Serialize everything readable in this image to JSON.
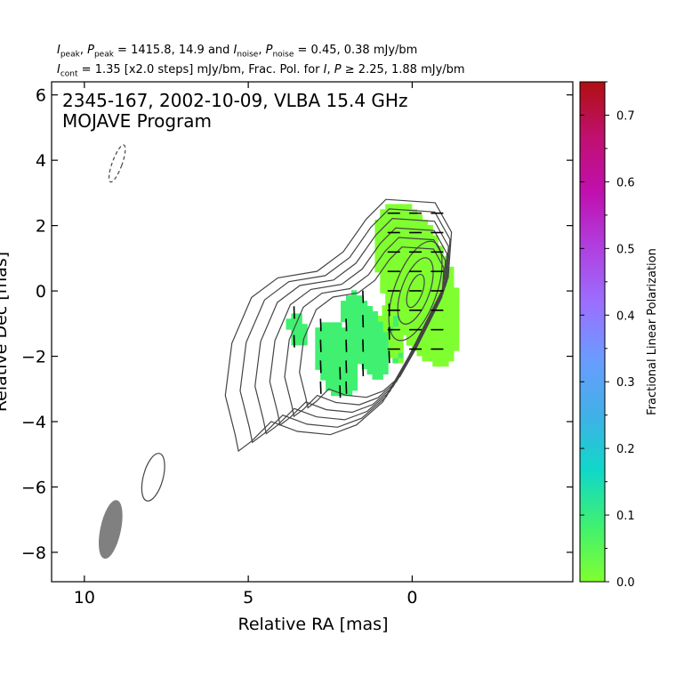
{
  "header": {
    "line1": {
      "peak_symbols": [
        "I",
        "peak",
        "P",
        "peak"
      ],
      "peak_values": "1415.8, 14.9",
      "and": "and",
      "noise_symbols": [
        "I",
        "noise",
        "P",
        "noise"
      ],
      "noise_values": "0.45, 0.38 mJy/bm"
    },
    "line2": {
      "cont_symbol": [
        "I",
        "cont"
      ],
      "cont_text": "= 1.35 [x2.0 steps] mJy/bm, Frac. Pol. for",
      "frac_symbols": [
        "I",
        "P"
      ],
      "frac_values": "2.25, 1.88 mJy/bm"
    }
  },
  "chart_data": {
    "type": "heatmap",
    "title": "2345-167, 2002-10-09, VLBA 15.4 GHz",
    "subtitle": "MOJAVE Program",
    "xlabel": "Relative RA [mas]",
    "ylabel": "Relative Dec [mas]",
    "xlim": [
      11,
      -4.9
    ],
    "ylim": [
      -8.9,
      6.4
    ],
    "x_ticks": [
      10,
      5,
      0
    ],
    "y_ticks": [
      6,
      4,
      2,
      0,
      -2,
      -4,
      -6,
      -8
    ],
    "colorbar": {
      "label": "Fractional Linear Polarization",
      "range": [
        0.0,
        0.75
      ],
      "ticks": [
        0.0,
        0.1,
        0.2,
        0.3,
        0.4,
        0.5,
        0.6,
        0.7
      ],
      "tick_labels": [
        "0.0",
        "0.1",
        "0.2",
        "0.3",
        "0.4",
        "0.5",
        "0.6",
        "0.7"
      ],
      "colors": [
        "#80ff30",
        "#40f070",
        "#10d8c8",
        "#40b0e8",
        "#6a9cff",
        "#9a70ff",
        "#b040e0",
        "#c010b0",
        "#c01070",
        "#b01010"
      ]
    },
    "beam": {
      "ra": 9.2,
      "dec": -7.3,
      "major_mas": 1.8,
      "minor_mas": 0.6,
      "pa_deg": 12,
      "color": "#808080"
    },
    "contour_peak": {
      "ra": -0.1,
      "dec": 0.0
    },
    "contour_levels": [
      1.35,
      2.7,
      5.4,
      10.8,
      21.6,
      43.2,
      86.4,
      172.8,
      345.6
    ],
    "negative_contour": {
      "ra": 9.0,
      "dec": 3.9,
      "level": -1.35
    },
    "polarization_regions": [
      {
        "ra": -0.1,
        "dec": 0.3,
        "frac_pol": 0.01
      },
      {
        "ra": 0.7,
        "dec": -1.3,
        "frac_pol": 0.03
      },
      {
        "ra": 1.5,
        "dec": -1.3,
        "frac_pol": 0.06
      },
      {
        "ra": 2.4,
        "dec": -2.0,
        "frac_pol": 0.07
      },
      {
        "ra": 2.2,
        "dec": -2.8,
        "frac_pol": 0.11
      },
      {
        "ra": 3.6,
        "dec": -1.1,
        "frac_pol": 0.08
      }
    ]
  }
}
